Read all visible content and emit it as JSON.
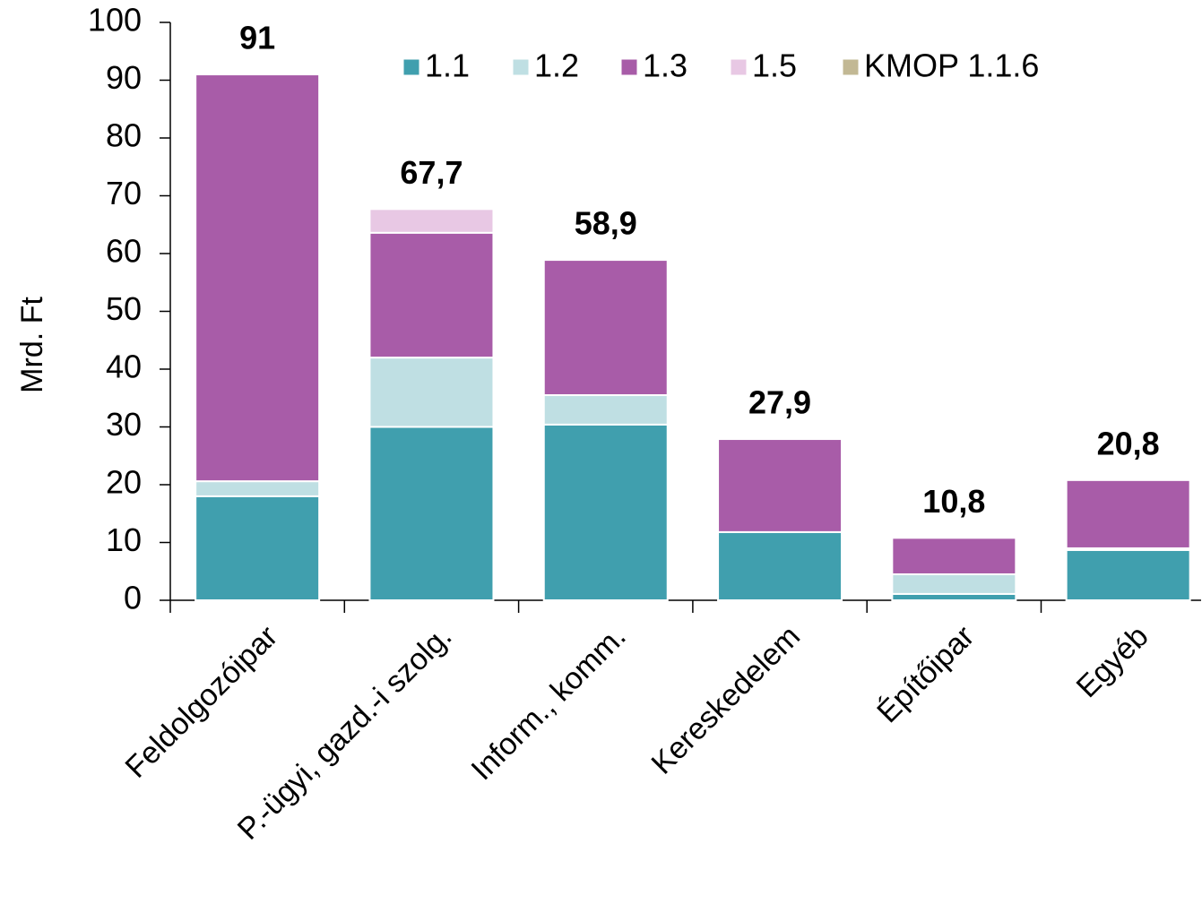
{
  "chart_data": {
    "type": "stacked_bar",
    "y_label": "Mrd. Ft",
    "categories": [
      "Feldolgozóipar",
      "P.-ügyi, gazd.-i szolg.",
      "Inform., komm.",
      "Kereskedelem",
      "Építőipar",
      "Egyéb"
    ],
    "series": [
      {
        "name": "1.1",
        "color": "#409fae",
        "values": [
          18,
          30,
          30.4,
          11.8,
          1.1,
          8.7
        ]
      },
      {
        "name": "1.2",
        "color": "#bfdfe3",
        "values": [
          2.6,
          12,
          5.1,
          0,
          3.4,
          0.3
        ]
      },
      {
        "name": "1.3",
        "color": "#a85ca8",
        "values": [
          70.4,
          21.6,
          23.4,
          16.1,
          6.3,
          11.8
        ]
      },
      {
        "name": "1.5",
        "color": "#e8c8e4",
        "values": [
          0,
          4.1,
          0,
          0,
          0,
          0
        ]
      },
      {
        "name": "KMOP 1.1.6",
        "color": "#c2b894",
        "values": [
          0,
          0,
          0,
          0,
          0,
          0
        ]
      }
    ],
    "totals": [
      91,
      67.7,
      58.9,
      27.9,
      10.8,
      20.8
    ],
    "total_labels": [
      "91",
      "67,7",
      "58,9",
      "27,9",
      "10,8",
      "20,8"
    ],
    "ylim": [
      0,
      100
    ],
    "yticks": [
      0,
      10,
      20,
      30,
      40,
      50,
      60,
      70,
      80,
      90,
      100
    ]
  }
}
